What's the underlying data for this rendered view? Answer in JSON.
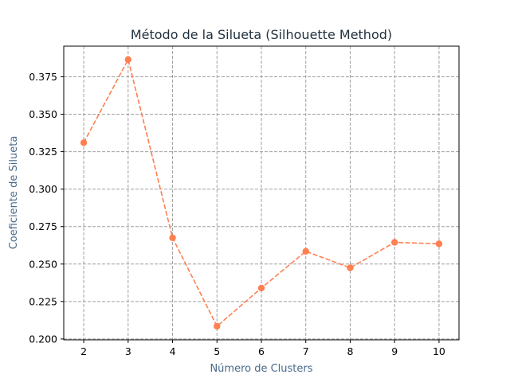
{
  "chart_data": {
    "type": "line",
    "title": "Método de la Silueta (Silhouette Method)",
    "xlabel": "Número de Clusters",
    "ylabel": "Coeficiente de Silueta",
    "x": [
      2,
      3,
      4,
      5,
      6,
      7,
      8,
      9,
      10
    ],
    "x_tick_labels": [
      "2",
      "3",
      "4",
      "5",
      "6",
      "7",
      "8",
      "9",
      "10"
    ],
    "series": [
      {
        "values": [
          0.331,
          0.3865,
          0.2675,
          0.2085,
          0.234,
          0.2585,
          0.2475,
          0.2645,
          0.2635
        ],
        "color": "#ff7f50",
        "line_style": "dashed",
        "marker": "circle"
      }
    ],
    "y_ticks": [
      0.2,
      0.225,
      0.25,
      0.275,
      0.3,
      0.325,
      0.35,
      0.375
    ],
    "y_tick_labels": [
      "0.200",
      "0.225",
      "0.250",
      "0.275",
      "0.300",
      "0.325",
      "0.350",
      "0.375"
    ],
    "xlim": [
      1.55,
      10.45
    ],
    "ylim": [
      0.19943,
      0.39542
    ],
    "grid": true,
    "grid_style": "dashed",
    "colors": {
      "title": "#1f2f3d",
      "axis_label": "#4a6a8a",
      "grid": "#a0a0a0",
      "axis": "#000000"
    }
  }
}
